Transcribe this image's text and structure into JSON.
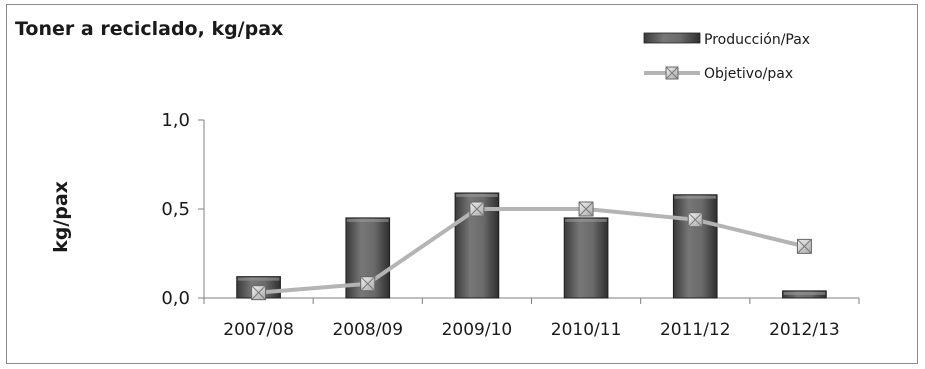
{
  "chart_data": {
    "type": "bar",
    "title": "Toner a reciclado, kg/pax",
    "ylabel": "kg/pax",
    "xlabel": "",
    "categories": [
      "2007/08",
      "2008/09",
      "2009/10",
      "2010/11",
      "2011/12",
      "2012/13"
    ],
    "ylim": [
      0,
      1.0
    ],
    "yticks": [
      0.0,
      0.5,
      1.0
    ],
    "ytick_labels": [
      "0,0",
      "0,5",
      "1,0"
    ],
    "grid": false,
    "legend_position": "top-right",
    "series": [
      {
        "name": "Producción/Pax",
        "kind": "bar",
        "color": "#5a5a5a",
        "values": [
          0.12,
          0.45,
          0.59,
          0.45,
          0.58,
          0.04
        ]
      },
      {
        "name": "Objetivo/pax",
        "kind": "line",
        "color": "#b4b4b4",
        "marker_color": "#d8d8d8",
        "values": [
          0.03,
          0.08,
          0.5,
          0.5,
          0.44,
          0.29
        ]
      }
    ]
  }
}
